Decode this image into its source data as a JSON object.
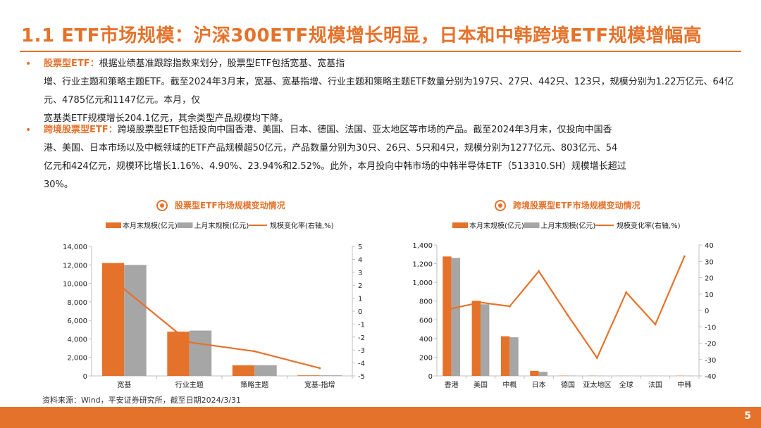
{
  "title": "1.1 ETF市场规模：沪深300ETF规模增长明显，日本和中韩跨境ETF规模增幅高",
  "bullets": [
    {
      "head": "股票型ETF：",
      "lines": [
        "根据业绩基准跟踪指数来划分，股票型ETF包括宽基、宽基指",
        "增、行业主题和策略主题ETF。截至2024年3月末，宽基、宽基指增、行业主题和策略主题ETF数量分别为197只、27只、442只、123只，规模分别为1.22万亿元、64亿元、4785亿元和1147亿元。本月，仅",
        "宽基类ETF规模增长204.1亿元，其余类型产品规模均下降。"
      ]
    },
    {
      "head": "跨境股票型ETF：",
      "lines": [
        "跨境股票型ETF包括投向中国香港、美国、日本、德国、法国、亚太地区等市场的产品。截至2024年3月末，仅投向中国香",
        "港、美国、日本市场以及中概领域的ETF产品规模超50亿元，产品数量分别为30只、26只、5只和4只，规模分别为1277亿元、803亿元、54",
        "亿元和424亿元，规模环比增长1.16%、4.90%、23.94%和2.52%。此外，本月投向中韩市场的中韩半导体ETF（513310.SH）规模增长超过",
        "30%。"
      ]
    }
  ],
  "source": "资料来源：Wind，平安证券研究所，截至日期2024/3/31",
  "page_number": "5",
  "colors": {
    "accent": "#E5722B",
    "gray_bar": "#A6A6A6",
    "axis": "#BFBFBF"
  },
  "chart_data": [
    {
      "type": "bar",
      "title": "股票型ETF市场规模变动情况",
      "categories": [
        "宽基",
        "行业主题",
        "策略主题",
        "宽基-指增"
      ],
      "series": [
        {
          "name": "本月末规模(亿元)",
          "values": [
            12200,
            4785,
            1147,
            64
          ],
          "color": "#E5722B",
          "axis": "left"
        },
        {
          "name": "上月末规模(亿元)",
          "values": [
            11996,
            4900,
            1160,
            66
          ],
          "color": "#A6A6A6",
          "axis": "left"
        },
        {
          "name": "规模变化率(右轴,%)",
          "values": [
            1.7,
            -2.4,
            -3.1,
            -4.4
          ],
          "color": "#E5722B",
          "axis": "right",
          "kind": "line"
        }
      ],
      "left_axis": {
        "min": 0,
        "max": 14000,
        "ticks": [
          0,
          2000,
          4000,
          6000,
          8000,
          10000,
          12000,
          14000
        ],
        "tick_labels": [
          "0",
          "2,000",
          "4,000",
          "6,000",
          "8,000",
          "10,000",
          "12,000",
          "14,000"
        ]
      },
      "right_axis": {
        "min": -5,
        "max": 5,
        "ticks": [
          -5,
          -4,
          -3,
          -2,
          -1,
          0,
          1,
          2,
          3,
          4,
          5
        ],
        "tick_labels": [
          "-5",
          "-4",
          "-3",
          "-2",
          "-1",
          "0",
          "1",
          "2",
          "3",
          "4",
          "5"
        ]
      },
      "legend": "top"
    },
    {
      "type": "bar",
      "title": "跨境股票型ETF市场规模变动情况",
      "categories": [
        "香港",
        "美国",
        "中概",
        "日本",
        "德国",
        "亚太地区",
        "全球",
        "法国",
        "中韩"
      ],
      "series": [
        {
          "name": "本月末规模(亿元)",
          "values": [
            1277,
            803,
            424,
            54,
            3,
            2,
            1,
            1,
            2
          ],
          "color": "#E5722B",
          "axis": "left"
        },
        {
          "name": "上月末规模(亿元)",
          "values": [
            1262,
            766,
            413,
            44,
            3,
            2,
            1,
            1,
            2
          ],
          "color": "#A6A6A6",
          "axis": "left"
        },
        {
          "name": "规模变化率(右轴,%)",
          "values": [
            1.16,
            4.9,
            2.52,
            23.94,
            -3,
            -29,
            11,
            -8.5,
            33
          ],
          "color": "#E5722B",
          "axis": "right",
          "kind": "line"
        }
      ],
      "left_axis": {
        "min": 0,
        "max": 1400,
        "ticks": [
          0,
          200,
          400,
          600,
          800,
          1000,
          1200,
          1400
        ],
        "tick_labels": [
          "0",
          "200",
          "400",
          "600",
          "800",
          "1,000",
          "1,200",
          "1,400"
        ]
      },
      "right_axis": {
        "min": -40,
        "max": 40,
        "ticks": [
          -40,
          -30,
          -20,
          -10,
          0,
          10,
          20,
          30,
          40
        ],
        "tick_labels": [
          "-40",
          "-30",
          "-20",
          "-10",
          "0",
          "10",
          "20",
          "30",
          "40"
        ]
      },
      "legend": "top"
    }
  ]
}
